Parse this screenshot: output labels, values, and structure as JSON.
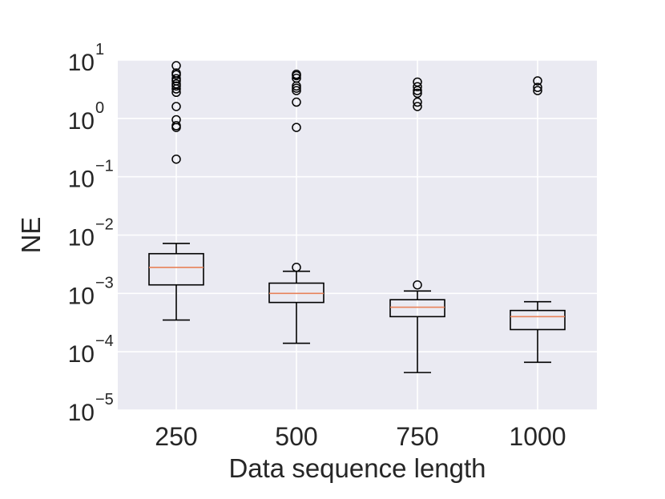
{
  "chart_data": {
    "type": "box",
    "xlabel": "Data sequence length",
    "ylabel": "NE",
    "y_scale": "log",
    "ylim": [
      1e-05,
      10
    ],
    "grid": true,
    "y_ticks": [
      {
        "value": 1e-05,
        "base": "10",
        "exp": "−5"
      },
      {
        "value": 0.0001,
        "base": "10",
        "exp": "−4"
      },
      {
        "value": 0.001,
        "base": "10",
        "exp": "−3"
      },
      {
        "value": 0.01,
        "base": "10",
        "exp": "−2"
      },
      {
        "value": 0.1,
        "base": "10",
        "exp": "−1"
      },
      {
        "value": 1,
        "base": "10",
        "exp": "0"
      },
      {
        "value": 10,
        "base": "10",
        "exp": "1"
      }
    ],
    "categories": [
      "250",
      "500",
      "750",
      "1000"
    ],
    "boxes": [
      {
        "category": "250",
        "whisker_low": 0.00035,
        "q1": 0.0014,
        "median": 0.0028,
        "q3": 0.0048,
        "whisker_high": 0.0072,
        "outliers": [
          0.2,
          0.7,
          0.75,
          0.95,
          1.6,
          2.8,
          3.2,
          3.6,
          3.9,
          4.4,
          4.8,
          5.6,
          6.0,
          8.0
        ]
      },
      {
        "category": "500",
        "whisker_low": 0.00014,
        "q1": 0.0007,
        "median": 0.001,
        "q3": 0.0015,
        "whisker_high": 0.0024,
        "outliers": [
          0.0028,
          0.7,
          1.9,
          3.0,
          3.3,
          3.6,
          4.9,
          5.4,
          5.7
        ]
      },
      {
        "category": "750",
        "whisker_low": 4.4e-05,
        "q1": 0.0004,
        "median": 0.00058,
        "q3": 0.00078,
        "whisker_high": 0.0011,
        "outliers": [
          0.0014,
          1.6,
          1.9,
          2.7,
          3.0,
          3.5,
          4.2
        ]
      },
      {
        "category": "1000",
        "whisker_low": 6.6e-05,
        "q1": 0.00024,
        "median": 0.0004,
        "q3": 0.00051,
        "whisker_high": 0.00072,
        "outliers": [
          3.0,
          3.4,
          4.4
        ]
      }
    ],
    "colors": {
      "plot_background": "#EAEAF2",
      "grid": "#FFFFFF",
      "box_edge": "#000000",
      "median": "#E8825A",
      "outlier_edge": "#000000",
      "text": "#262626"
    }
  }
}
